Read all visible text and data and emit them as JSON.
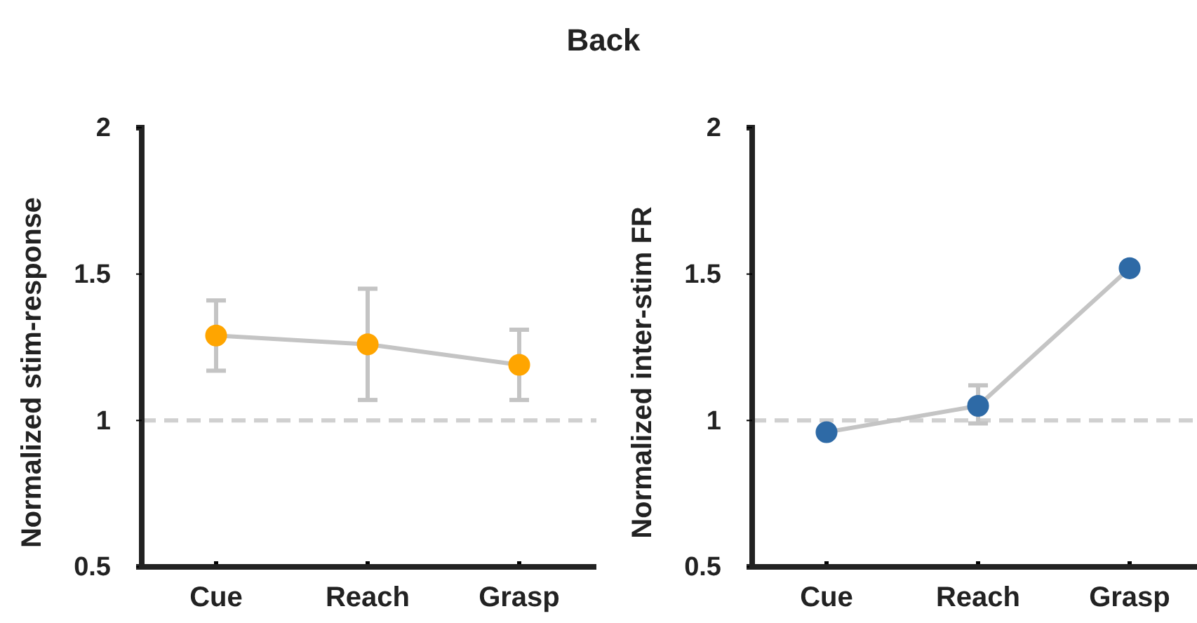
{
  "chart_data": [
    {
      "type": "line",
      "title": "Back",
      "ylabel": "Normalized stim-response",
      "categories": [
        "Cue",
        "Reach",
        "Grasp"
      ],
      "series": [
        {
          "color": "#c4c4c4",
          "colors": [
            "#ffa500",
            "#ffa500",
            "#ffa500"
          ],
          "values": [
            1.29,
            1.26,
            1.19
          ],
          "errors": [
            [
              1.17,
              1.41
            ],
            [
              1.07,
              1.45
            ],
            [
              1.07,
              1.31
            ]
          ]
        }
      ],
      "ylim": [
        0.5,
        2
      ],
      "yticks": [
        0.5,
        1,
        1.5,
        2
      ],
      "marker": "circle",
      "line_style": "solid",
      "ref_lines": [
        {
          "axis": "y",
          "value": 1,
          "color": "#d0d0d0",
          "line_style": "dashed"
        }
      ]
    },
    {
      "type": "line",
      "ylabel": "Normalized inter-stim FR",
      "categories": [
        "Cue",
        "Reach",
        "Grasp"
      ],
      "series": [
        {
          "color": "#c4c4c4",
          "colors": [
            "#2e6aa6",
            "#2e6aa6",
            "#2e6aa6"
          ],
          "values": [
            0.96,
            1.05,
            1.52
          ],
          "errors": [
            null,
            [
              0.99,
              1.12
            ],
            null
          ]
        }
      ],
      "ylim": [
        0.5,
        2
      ],
      "yticks": [
        0.5,
        1,
        1.5,
        2
      ],
      "marker": "circle",
      "line_style": "solid",
      "ref_lines": [
        {
          "axis": "y",
          "value": 1,
          "color": "#d0d0d0",
          "line_style": "dashed"
        }
      ]
    }
  ]
}
